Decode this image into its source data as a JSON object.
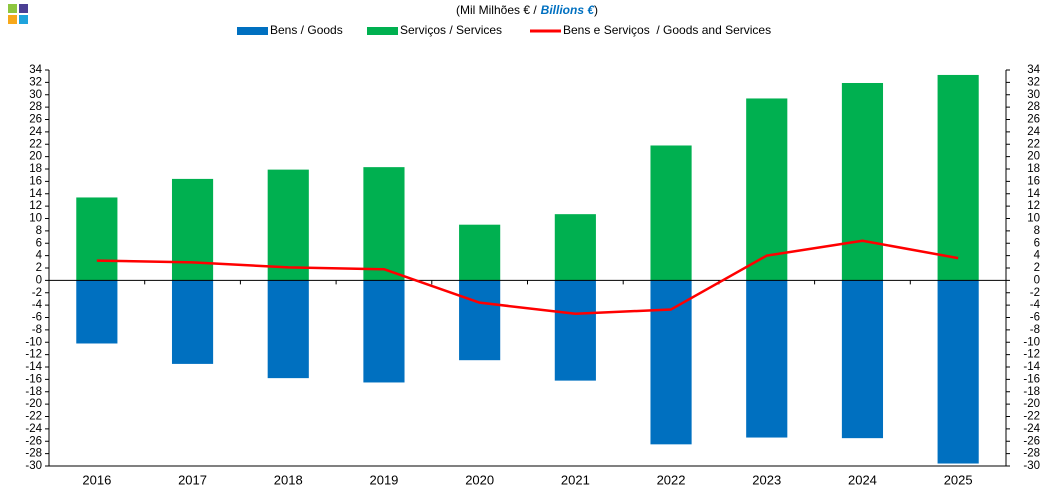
{
  "chart_data": {
    "type": "bar",
    "title_prefix": "(Mil Milhões € /",
    "title_emphasis": "Billions €",
    "title_suffix": ")",
    "categories": [
      "2016",
      "2017",
      "2018",
      "2019",
      "2020",
      "2021",
      "2022",
      "2023",
      "2024",
      "2025"
    ],
    "series": [
      {
        "name": "Bens / Goods",
        "color": "#0070c0",
        "kind": "bar",
        "values": [
          -10.2,
          -13.5,
          -15.8,
          -16.5,
          -12.9,
          -16.2,
          -26.5,
          -25.4,
          -25.5,
          -29.6
        ]
      },
      {
        "name": "Serviços / Services",
        "color": "#00b050",
        "kind": "bar",
        "values": [
          13.4,
          16.4,
          17.9,
          18.3,
          9.0,
          10.7,
          21.8,
          29.4,
          31.9,
          33.2
        ]
      },
      {
        "name": "Bens e Serviços  / Goods and Services",
        "color": "#ff0000",
        "kind": "line",
        "values": [
          3.2,
          2.9,
          2.1,
          1.8,
          -3.6,
          -5.4,
          -4.7,
          4.0,
          6.4,
          3.6
        ]
      }
    ],
    "ylim": [
      -30,
      34
    ],
    "yticks": [
      -30,
      -28,
      -26,
      -24,
      -22,
      -20,
      -18,
      -16,
      -14,
      -12,
      -10,
      -8,
      -6,
      -4,
      -2,
      0,
      2,
      4,
      6,
      8,
      10,
      12,
      14,
      16,
      18,
      20,
      22,
      24,
      26,
      28,
      30,
      32,
      34
    ],
    "y2lim": [
      -30,
      34
    ],
    "y2ticks": [
      -30,
      -28,
      -26,
      -24,
      -22,
      -20,
      -18,
      -16,
      -14,
      -12,
      -10,
      -8,
      -6,
      -4,
      -2,
      0,
      2,
      4,
      6,
      8,
      10,
      12,
      14,
      16,
      18,
      20,
      22,
      24,
      26,
      28,
      30,
      32,
      34
    ],
    "grid": false
  }
}
